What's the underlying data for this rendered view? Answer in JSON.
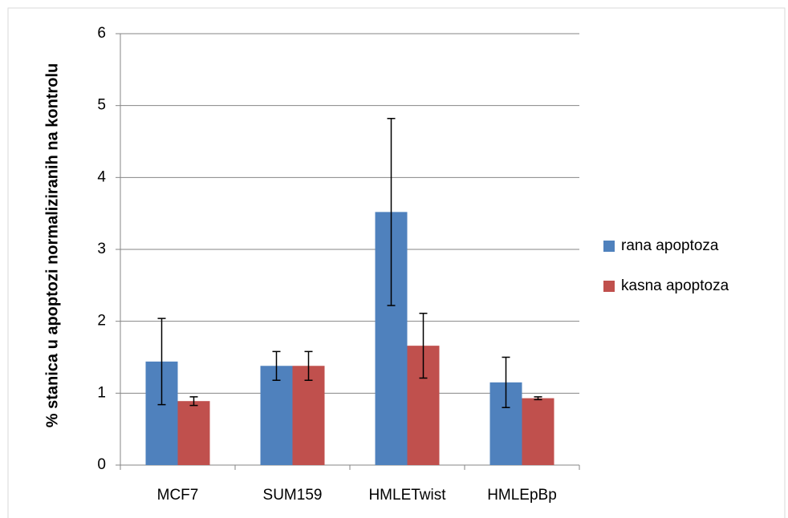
{
  "chart_data": {
    "type": "bar",
    "y_label": "% stanica u apoptozi normaliziranih na kontrolu",
    "categories": [
      "MCF7",
      "SUM159",
      "HMLETwist",
      "HMLEpBp"
    ],
    "series": [
      {
        "name": "rana apoptoza",
        "color": "#4f81bd",
        "values": [
          1.44,
          1.38,
          3.52,
          1.15
        ],
        "errors": [
          0.6,
          0.2,
          1.3,
          0.35
        ]
      },
      {
        "name": "kasna apoptoza",
        "color": "#c0504d",
        "values": [
          0.89,
          1.38,
          1.66,
          0.93
        ],
        "errors": [
          0.06,
          0.2,
          0.45,
          0.02
        ]
      }
    ],
    "ylim": [
      0,
      6
    ],
    "yticks": [
      0,
      1,
      2,
      3,
      4,
      5,
      6
    ],
    "grid": true,
    "legend": "right"
  }
}
